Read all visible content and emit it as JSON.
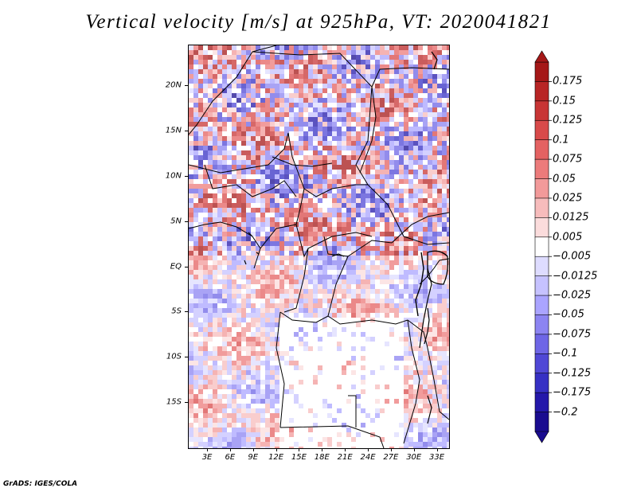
{
  "title": "Vertical velocity [m/s] at 925hPa, VT: 2020041821",
  "credit": "GrADS: IGES/COLA",
  "map": {
    "lat_labels": [
      "20N",
      "15N",
      "10N",
      "5N",
      "EQ",
      "5S",
      "10S",
      "15S"
    ],
    "lat_values": [
      20,
      15,
      10,
      5,
      0,
      -5,
      -10,
      -15
    ],
    "lon_labels": [
      "3E",
      "6E",
      "9E",
      "12E",
      "15E",
      "18E",
      "21E",
      "24E",
      "27E",
      "30E",
      "33E"
    ],
    "lon_values": [
      3,
      6,
      9,
      12,
      15,
      18,
      21,
      24,
      27,
      30,
      33
    ],
    "lat_range": [
      -20,
      24.5
    ],
    "lon_range": [
      0.5,
      34.5
    ]
  },
  "colorbar": {
    "labels": [
      "0.175",
      "0.15",
      "0.125",
      "0.1",
      "0.075",
      "0.05",
      "0.025",
      "0.0125",
      "0.005",
      "−0.005",
      "−0.0125",
      "−0.025",
      "−0.05",
      "−0.075",
      "−0.1",
      "−0.125",
      "−0.175",
      "−0.2"
    ],
    "colors": [
      "#a51818",
      "#b82525",
      "#c83535",
      "#d84a4a",
      "#e46262",
      "#ec7b7b",
      "#f29a9a",
      "#f7bcbc",
      "#fbdcdc",
      "#ffffff",
      "#dedcff",
      "#c6c2ff",
      "#aaa4ff",
      "#8c84f2",
      "#6e66e6",
      "#5048d6",
      "#3630c4",
      "#2418aa",
      "#1a0c90"
    ]
  }
}
